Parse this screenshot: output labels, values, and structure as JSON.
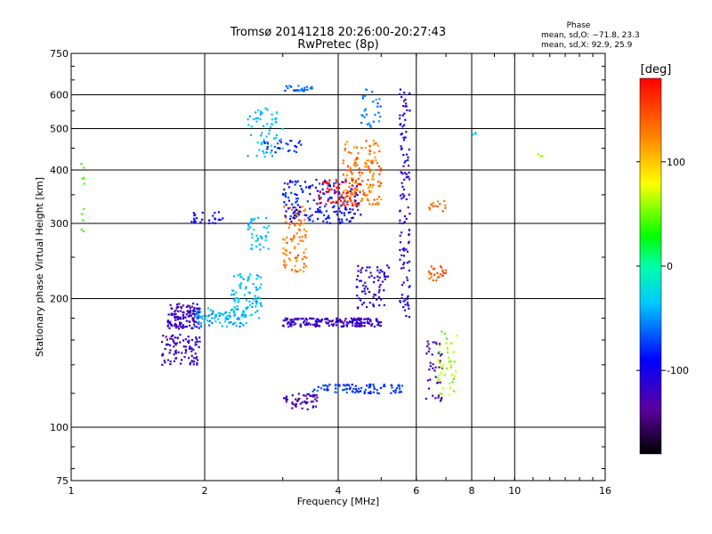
{
  "chart_data": {
    "type": "scatter",
    "title": "Tromsø 20141218 20:26:00-20:27:43",
    "subtitle": "RwPretec (8p)",
    "xlabel": "Frequency [MHz]",
    "ylabel": "Stationary phase Virtual Height [km]",
    "x_scale": "log",
    "y_scale": "log",
    "xlim": [
      1,
      16
    ],
    "ylim": [
      75,
      750
    ],
    "x_ticks": [
      1,
      2,
      4,
      6,
      8,
      10,
      16
    ],
    "y_ticks": [
      75,
      100,
      200,
      300,
      400,
      500,
      600,
      750
    ],
    "grid": true,
    "phase_stats": {
      "title": "Phase",
      "line_o": "mean, sd,O: −71.8, 23.3",
      "line_x": "mean, sd,X:  92.9, 25.9"
    },
    "colorbar": {
      "label": "[deg]",
      "min": -180,
      "max": 180,
      "ticks": [
        100,
        0,
        -100
      ]
    },
    "clusters": [
      {
        "x": [
          1.05,
          1.07
        ],
        "y": [
          260,
          440
        ],
        "phase": [
          40,
          40
        ],
        "count": 10
      },
      {
        "x": [
          1.65,
          1.95
        ],
        "y": [
          170,
          195
        ],
        "phase": [
          -140,
          -100
        ],
        "count": 140
      },
      {
        "x": [
          1.6,
          1.95
        ],
        "y": [
          140,
          165
        ],
        "phase": [
          -140,
          -100
        ],
        "count": 90
      },
      {
        "x": [
          1.9,
          2.5
        ],
        "y": [
          172,
          190
        ],
        "phase": [
          -60,
          -20
        ],
        "count": 90
      },
      {
        "x": [
          2.3,
          2.7
        ],
        "y": [
          180,
          230
        ],
        "phase": [
          -50,
          -20
        ],
        "count": 80
      },
      {
        "x": [
          2.5,
          2.8
        ],
        "y": [
          260,
          310
        ],
        "phase": [
          -50,
          -20
        ],
        "count": 40
      },
      {
        "x": [
          2.5,
          3.0
        ],
        "y": [
          430,
          560
        ],
        "phase": [
          -50,
          -20
        ],
        "count": 55
      },
      {
        "x": [
          1.85,
          2.2
        ],
        "y": [
          300,
          320
        ],
        "phase": [
          -110,
          -80
        ],
        "count": 25
      },
      {
        "x": [
          2.7,
          3.3
        ],
        "y": [
          440,
          470
        ],
        "phase": [
          -90,
          -60
        ],
        "count": 30
      },
      {
        "x": [
          3.0,
          3.4
        ],
        "y": [
          230,
          330
        ],
        "phase": [
          110,
          150
        ],
        "count": 90
      },
      {
        "x": [
          3.0,
          5.0
        ],
        "y": [
          172,
          180
        ],
        "phase": [
          -140,
          -100
        ],
        "count": 180
      },
      {
        "x": [
          3.0,
          3.6
        ],
        "y": [
          110,
          120
        ],
        "phase": [
          -140,
          -110
        ],
        "count": 50
      },
      {
        "x": [
          3.5,
          5.6
        ],
        "y": [
          120,
          126
        ],
        "phase": [
          -90,
          -60
        ],
        "count": 90
      },
      {
        "x": [
          3.0,
          4.5
        ],
        "y": [
          300,
          380
        ],
        "phase": [
          -110,
          -70
        ],
        "count": 180
      },
      {
        "x": [
          3.0,
          3.5
        ],
        "y": [
          610,
          630
        ],
        "phase": [
          -80,
          -50
        ],
        "count": 25
      },
      {
        "x": [
          3.6,
          4.5
        ],
        "y": [
          330,
          380
        ],
        "phase": [
          170,
          200
        ],
        "count": 60
      },
      {
        "x": [
          4.1,
          5.0
        ],
        "y": [
          330,
          470
        ],
        "phase": [
          110,
          150
        ],
        "count": 150
      },
      {
        "x": [
          4.4,
          5.2
        ],
        "y": [
          190,
          240
        ],
        "phase": [
          -130,
          -90
        ],
        "count": 70
      },
      {
        "x": [
          4.5,
          5.0
        ],
        "y": [
          500,
          620
        ],
        "phase": [
          -70,
          -40
        ],
        "count": 30
      },
      {
        "x": [
          5.5,
          5.8
        ],
        "y": [
          180,
          640
        ],
        "phase": [
          -140,
          -80
        ],
        "count": 120
      },
      {
        "x": [
          6.3,
          6.9
        ],
        "y": [
          115,
          160
        ],
        "phase": [
          -150,
          -110
        ],
        "count": 40
      },
      {
        "x": [
          6.7,
          7.4
        ],
        "y": [
          118,
          170
        ],
        "phase": [
          40,
          80
        ],
        "count": 45
      },
      {
        "x": [
          6.4,
          7.0
        ],
        "y": [
          220,
          240
        ],
        "phase": [
          130,
          160
        ],
        "count": 25
      },
      {
        "x": [
          6.4,
          7.0
        ],
        "y": [
          320,
          340
        ],
        "phase": [
          120,
          150
        ],
        "count": 15
      },
      {
        "x": [
          7.9,
          8.3
        ],
        "y": [
          480,
          490
        ],
        "phase": [
          -40,
          -20
        ],
        "count": 3
      },
      {
        "x": [
          11.2,
          11.6
        ],
        "y": [
          430,
          440
        ],
        "phase": [
          60,
          60
        ],
        "count": 3
      }
    ]
  }
}
